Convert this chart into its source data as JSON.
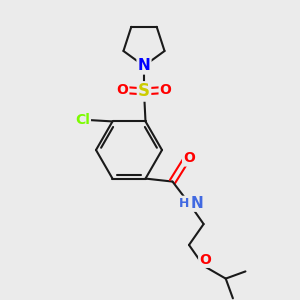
{
  "background_color": "#ebebeb",
  "bond_color": "#1a1a1a",
  "bond_width": 1.5,
  "atom_colors": {
    "N_pyrrolidine": "#0000ff",
    "S": "#cccc00",
    "O_sulfonyl": "#ff0000",
    "Cl": "#7cfc00",
    "O_amide": "#ff0000",
    "N_amide": "#4169e1",
    "O_ether": "#ff0000",
    "H_amide": "#4169e1"
  },
  "figsize": [
    3.0,
    3.0
  ],
  "dpi": 100,
  "xlim": [
    0,
    10
  ],
  "ylim": [
    0,
    10
  ]
}
